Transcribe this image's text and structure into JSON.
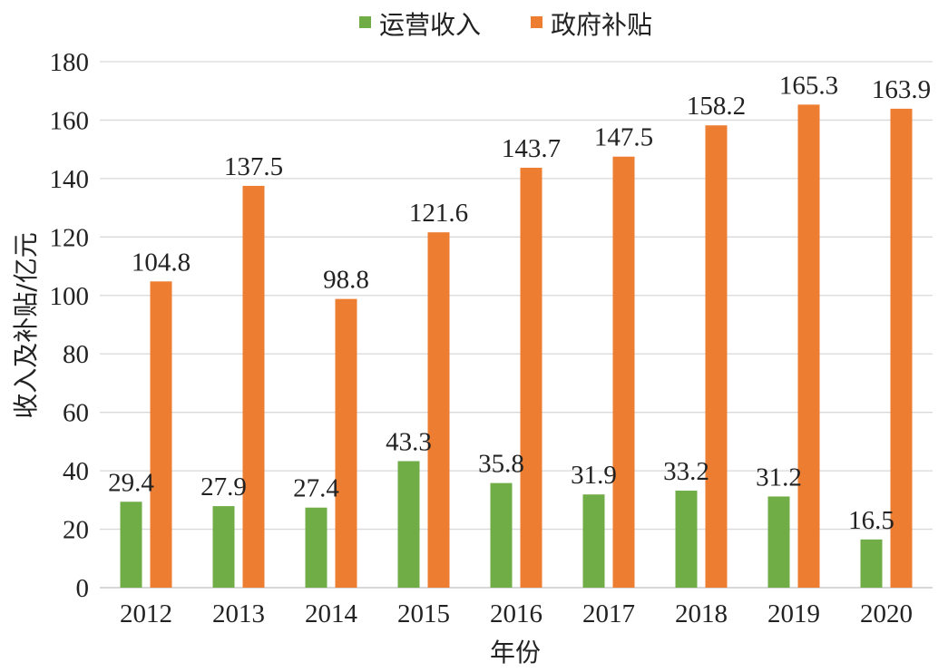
{
  "chart_data": {
    "type": "bar",
    "title": "",
    "xlabel": "年份",
    "ylabel": "收入及补贴/亿元",
    "ylim": [
      0,
      180
    ],
    "yticks": [
      "0",
      "20",
      "40",
      "60",
      "80",
      "100",
      "120",
      "140",
      "160",
      "180"
    ],
    "grid": true,
    "legend_position": "top-center",
    "categories": [
      "2012",
      "2013",
      "2014",
      "2015",
      "2016",
      "2017",
      "2018",
      "2019",
      "2020"
    ],
    "series": [
      {
        "name": "运营收入",
        "color": "#70AD47",
        "values": [
          29.4,
          27.9,
          27.4,
          43.3,
          35.8,
          31.9,
          33.2,
          31.2,
          16.5
        ],
        "labels": [
          "29.4",
          "27.9",
          "27.4",
          "43.3",
          "35.8",
          "31.9",
          "33.2",
          "31.2",
          "16.5"
        ]
      },
      {
        "name": "政府补贴",
        "color": "#ED7D31",
        "values": [
          104.8,
          137.5,
          98.8,
          121.6,
          143.7,
          147.5,
          158.2,
          165.3,
          163.9
        ],
        "labels": [
          "104.8",
          "137.5",
          "98.8",
          "121.6",
          "143.7",
          "147.5",
          "158.2",
          "165.3",
          "163.9"
        ]
      }
    ]
  }
}
